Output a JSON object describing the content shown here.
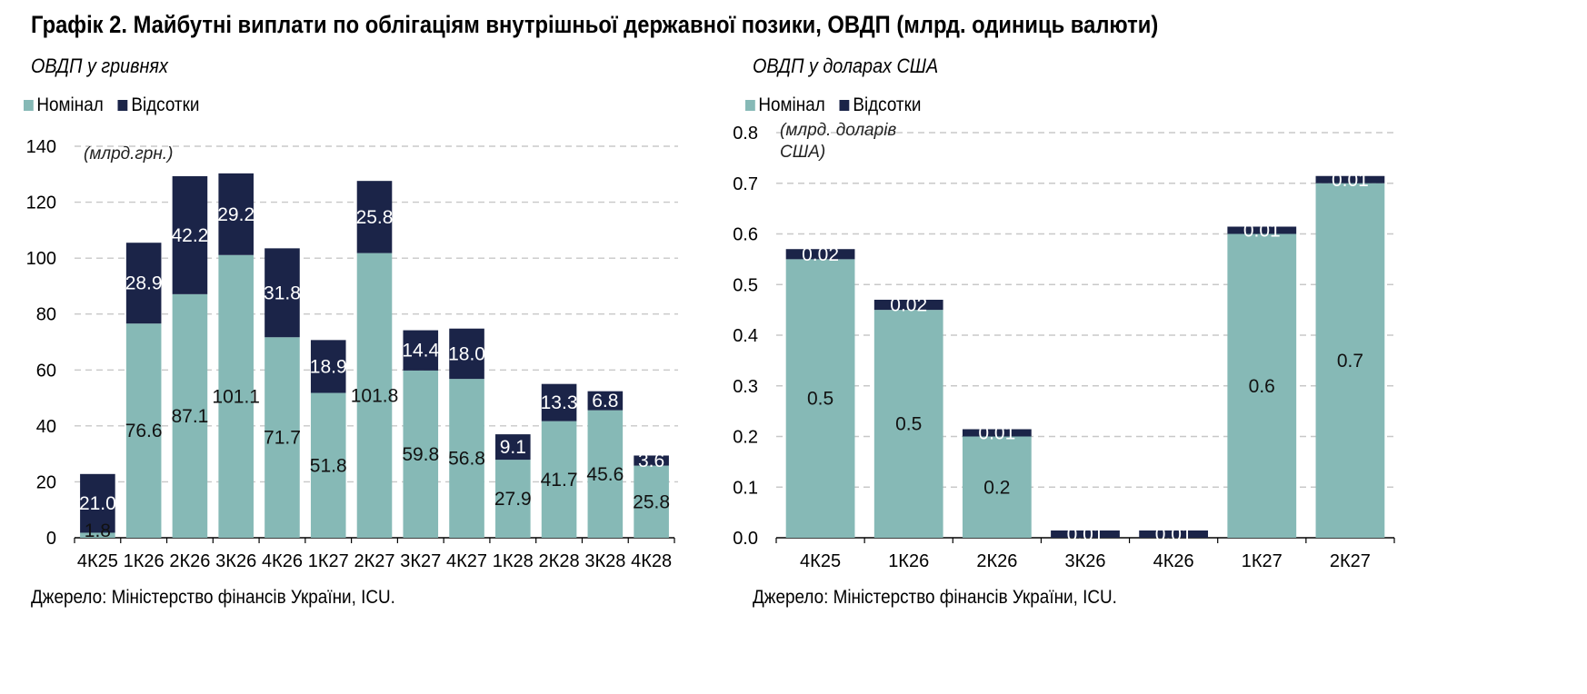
{
  "title": "Графік 2. Майбутні виплати по облігаціям внутрішньої державної позики, ОВДП (млрд. одиниць валюти)",
  "colors": {
    "nominal": "#86b9b6",
    "interest": "#1b2448",
    "grid": "#c8c8c8"
  },
  "left": {
    "subtitle": "ОВДП у гривнях",
    "legend": {
      "nominal": "Номінал",
      "interest": "Відсотки"
    },
    "unit_note": "(млрд.грн.)",
    "source": "Джерело: Міністерство фінансів України, ICU."
  },
  "right": {
    "subtitle": "ОВДП у доларах США",
    "legend": {
      "nominal": "Номінал",
      "interest": "Відсотки"
    },
    "unit_note_line1": "(млрд. доларів",
    "unit_note_line2": "США)",
    "source": "Джерело: Міністерство фінансів України, ICU."
  },
  "chart_data": [
    {
      "type": "bar",
      "stacked": true,
      "title": "ОВДП у гривнях",
      "categories": [
        "4К25",
        "1К26",
        "2К26",
        "3К26",
        "4К26",
        "1К27",
        "2К27",
        "3К27",
        "4К27",
        "1К28",
        "2К28",
        "3К28",
        "4К28"
      ],
      "series": [
        {
          "name": "Номінал",
          "values": [
            1.8,
            76.6,
            87.1,
            101.1,
            71.7,
            51.8,
            101.8,
            59.8,
            56.8,
            27.9,
            41.7,
            45.6,
            25.8
          ],
          "labels": [
            "1.8",
            "76.6",
            "87.1",
            "101.1",
            "71.7",
            "51.8",
            "101.8",
            "59.8",
            "56.8",
            "27.9",
            "41.7",
            "45.6",
            "25.8"
          ]
        },
        {
          "name": "Відсотки",
          "values": [
            21.0,
            28.9,
            42.2,
            29.2,
            31.8,
            18.9,
            25.8,
            14.4,
            18.0,
            9.1,
            13.3,
            6.8,
            3.6
          ],
          "labels": [
            "21.0",
            "28.9",
            "42.2",
            "29.2",
            "31.8",
            "18.9",
            "25.8",
            "14.4",
            "18.0",
            "9.1",
            "13.3",
            "6.8",
            "3.6"
          ]
        }
      ],
      "ylim": [
        0,
        140
      ],
      "yticks": [
        "0",
        "20",
        "40",
        "60",
        "80",
        "100",
        "120",
        "140"
      ],
      "ylabel": "(млрд.грн.)",
      "grid": true,
      "legend": "top-left"
    },
    {
      "type": "bar",
      "stacked": true,
      "title": "ОВДП у доларах США",
      "categories": [
        "4К25",
        "1К26",
        "2К26",
        "3К26",
        "4К26",
        "1К27",
        "2К27"
      ],
      "series": [
        {
          "name": "Номінал",
          "values": [
            0.55,
            0.45,
            0.2,
            0.0,
            0.0,
            0.6,
            0.7
          ],
          "labels": [
            "0.5",
            "0.5",
            "0.2",
            "",
            "",
            "0.6",
            "0.7"
          ]
        },
        {
          "name": "Відсотки",
          "values": [
            0.02,
            0.02,
            0.01,
            0.01,
            0.01,
            0.01,
            0.01
          ],
          "labels": [
            "0.02",
            "0.02",
            "0.01",
            "0.01",
            "0.01",
            "0.01",
            "0.01"
          ]
        }
      ],
      "ylim": [
        0,
        0.8
      ],
      "yticks": [
        "0.0",
        "0.1",
        "0.2",
        "0.3",
        "0.4",
        "0.5",
        "0.6",
        "0.7",
        "0.8"
      ],
      "ylabel": "(млрд. доларів США)",
      "grid": true,
      "legend": "top-left"
    }
  ]
}
